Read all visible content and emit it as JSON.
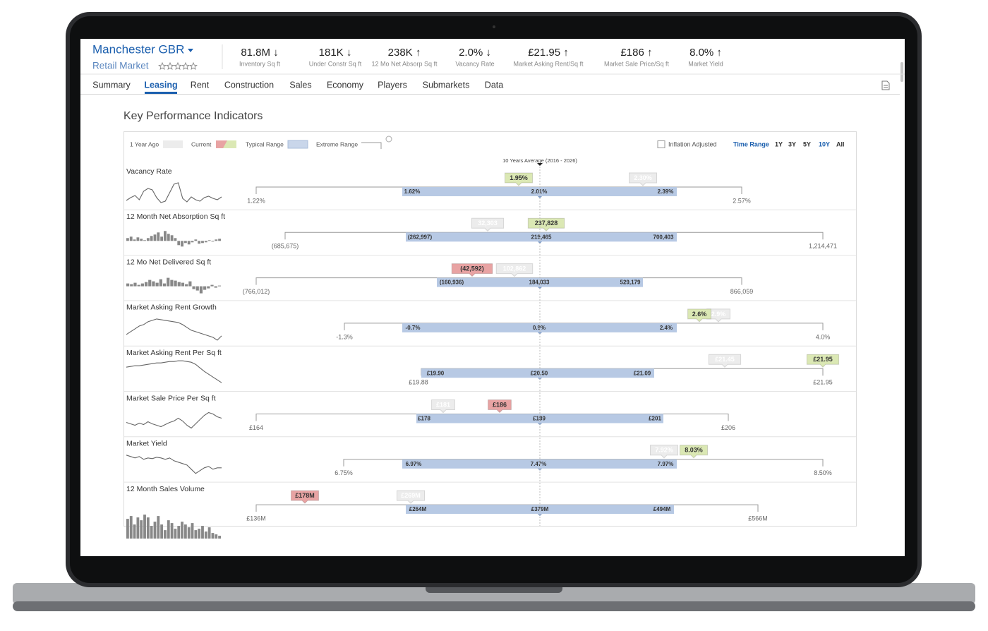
{
  "header": {
    "title": "Manchester GBR",
    "subtitle": "Retail Market",
    "metrics": [
      {
        "value": "81.8M ↓",
        "label": "Inventory Sq ft"
      },
      {
        "value": "181K ↓",
        "label": "Under Constr Sq ft"
      },
      {
        "value": "238K ↑",
        "label": "12 Mo Net Absorp Sq ft"
      },
      {
        "value": "2.0% ↓",
        "label": "Vacancy Rate"
      },
      {
        "value": "£21.95 ↑",
        "label": "Market Asking Rent/Sq ft"
      },
      {
        "value": "£186 ↑",
        "label": "Market Sale Price/Sq ft"
      },
      {
        "value": "8.0% ↑",
        "label": "Market Yield"
      }
    ]
  },
  "tabs": {
    "items": [
      "Summary",
      "Leasing",
      "Rent",
      "Construction",
      "Sales",
      "Economy",
      "Players",
      "Submarkets",
      "Data"
    ],
    "active": 1
  },
  "kpi": {
    "title": "Key Performance Indicators",
    "legend": [
      "1 Year Ago",
      "Current",
      "Typical Range",
      "Extreme Range"
    ],
    "inflation_label": "Inflation Adjusted",
    "time_range_label": "Time Range",
    "time_range_options": [
      "1Y",
      "3Y",
      "5Y",
      "10Y",
      "All"
    ],
    "time_range_selected": 3,
    "average_label": "10 Years Average (2016 - 2026)",
    "rows": [
      {
        "name": "Vacancy Rate",
        "extreme_min": "1.22%",
        "extreme_max": "2.57%",
        "typical_low": "1.62%",
        "average": "2.01%",
        "typical_high": "2.39%",
        "current": "1.95%",
        "current_color": "#dbe8b4",
        "year_ago": "2.30%"
      },
      {
        "name": "12 Month Net Absorption Sq ft",
        "extreme_min": "(685,675)",
        "extreme_max": "1,214,471",
        "typical_low": "(262,997)",
        "average": "219,465",
        "typical_high": "700,403",
        "current": "237,828",
        "current_color": "#dbe8b4",
        "year_ago": "32,303"
      },
      {
        "name": "12 Mo Net Delivered Sq ft",
        "extreme_min": "(766,012)",
        "extreme_max": "866,059",
        "typical_low": "(160,936)",
        "average": "184,033",
        "typical_high": "529,179",
        "current": "(42,592)",
        "current_color": "#e8a3a3",
        "year_ago": "102,862"
      },
      {
        "name": "Market Asking Rent Growth",
        "extreme_min": "-1.3%",
        "extreme_max": "4.0%",
        "typical_low": "-0.7%",
        "average": "0.9%",
        "typical_high": "2.4%",
        "current": "2.6%",
        "current_color": "#dbe8b4",
        "year_ago": "2.9%"
      },
      {
        "name": "Market Asking Rent Per Sq ft",
        "extreme_min": "£19.88",
        "extreme_max": "£21.95",
        "typical_low": "£19.90",
        "average": "£20.50",
        "typical_high": "£21.09",
        "current": "£21.95",
        "current_color": "#dbe8b4",
        "year_ago": "£21.45"
      },
      {
        "name": "Market Sale Price Per Sq ft",
        "extreme_min": "£164",
        "extreme_max": "£206",
        "typical_low": "£178",
        "average": "£189",
        "typical_high": "£201",
        "current": "£186",
        "current_color": "#e8a3a3",
        "year_ago": "£181"
      },
      {
        "name": "Market Yield",
        "extreme_min": "6.75%",
        "extreme_max": "8.50%",
        "typical_low": "6.97%",
        "average": "7.47%",
        "typical_high": "7.97%",
        "current": "8.03%",
        "current_color": "#dbe8b4",
        "year_ago": "7.92%"
      },
      {
        "name": "12 Month Sales Volume",
        "extreme_min": "£136M",
        "extreme_max": "£566M",
        "typical_low": "£264M",
        "average": "£379M",
        "typical_high": "£494M",
        "current": "£178M",
        "current_color": "#e8a3a3",
        "year_ago": "£269M"
      }
    ]
  }
}
